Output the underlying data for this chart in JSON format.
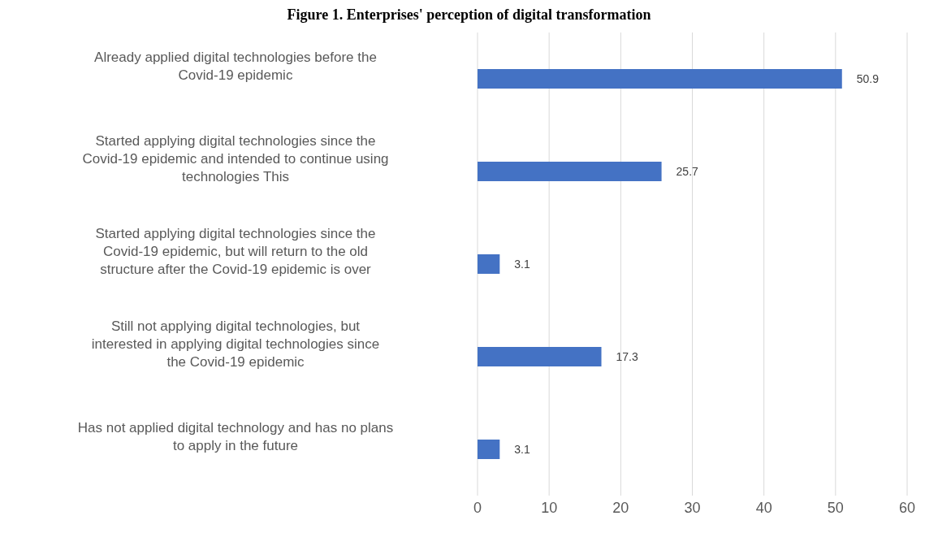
{
  "chart_data": {
    "type": "bar",
    "orientation": "horizontal",
    "title": "Figure 1. Enterprises' perception of digital transformation",
    "categories": [
      "Already applied digital technologies before the Covid-19 epidemic",
      "Started applying digital technologies since the Covid-19 epidemic and intended to continue using technologies This",
      "Started applying digital technologies since the Covid-19 epidemic, but will return to the old structure after the Covid-19 epidemic is over",
      "Still not applying digital technologies, but interested in applying digital technologies since the Covid-19 epidemic",
      "Has not applied digital technology and has no plans to apply in the future"
    ],
    "values": [
      50.9,
      25.7,
      3.1,
      17.3,
      3.1
    ],
    "color": "#4472c4",
    "xlim": [
      0,
      60
    ],
    "xticks": [
      0,
      10,
      20,
      30,
      40,
      50,
      60
    ],
    "grid": "x",
    "data_labels": true
  }
}
